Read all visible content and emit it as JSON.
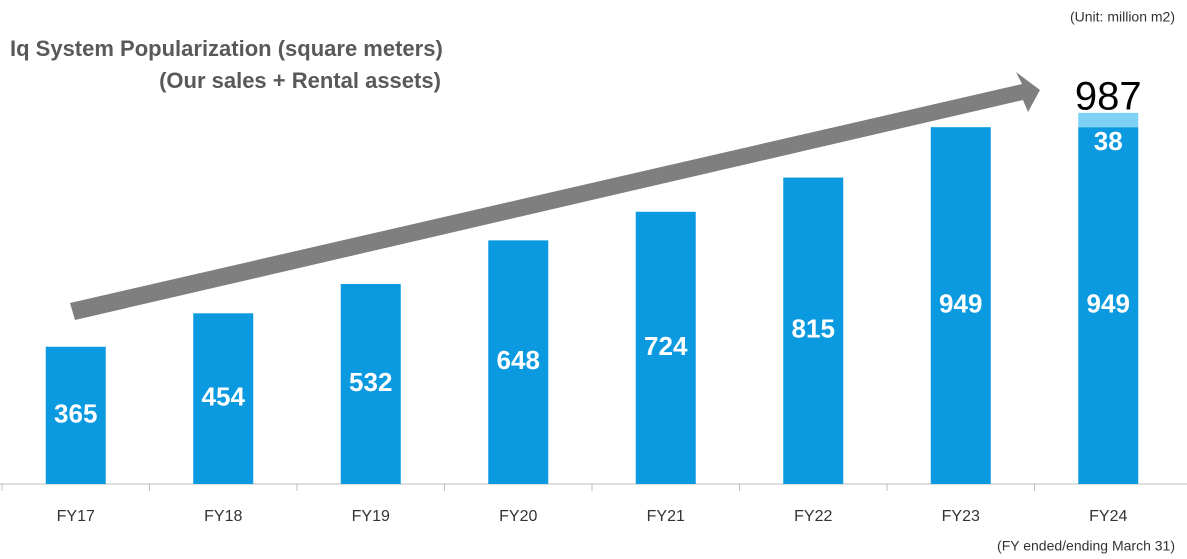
{
  "chart_data": {
    "type": "stacked_bar",
    "title": "Iq System Popularization (square meters)",
    "subtitle": "(Our sales + Rental assets)",
    "unit_note": "(Unit: million m2)",
    "footnote": "(FY ended/ending March 31)",
    "categories": [
      "FY17",
      "FY18",
      "FY19",
      "FY20",
      "FY21",
      "FY22",
      "FY23",
      "FY24"
    ],
    "series": [
      {
        "color": "#0b9ae0",
        "values": [
          365,
          454,
          532,
          648,
          724,
          815,
          949,
          949
        ]
      },
      {
        "color": "#7fd0f5",
        "values": [
          null,
          null,
          null,
          null,
          null,
          null,
          null,
          38
        ]
      }
    ],
    "total_label": 987
  }
}
